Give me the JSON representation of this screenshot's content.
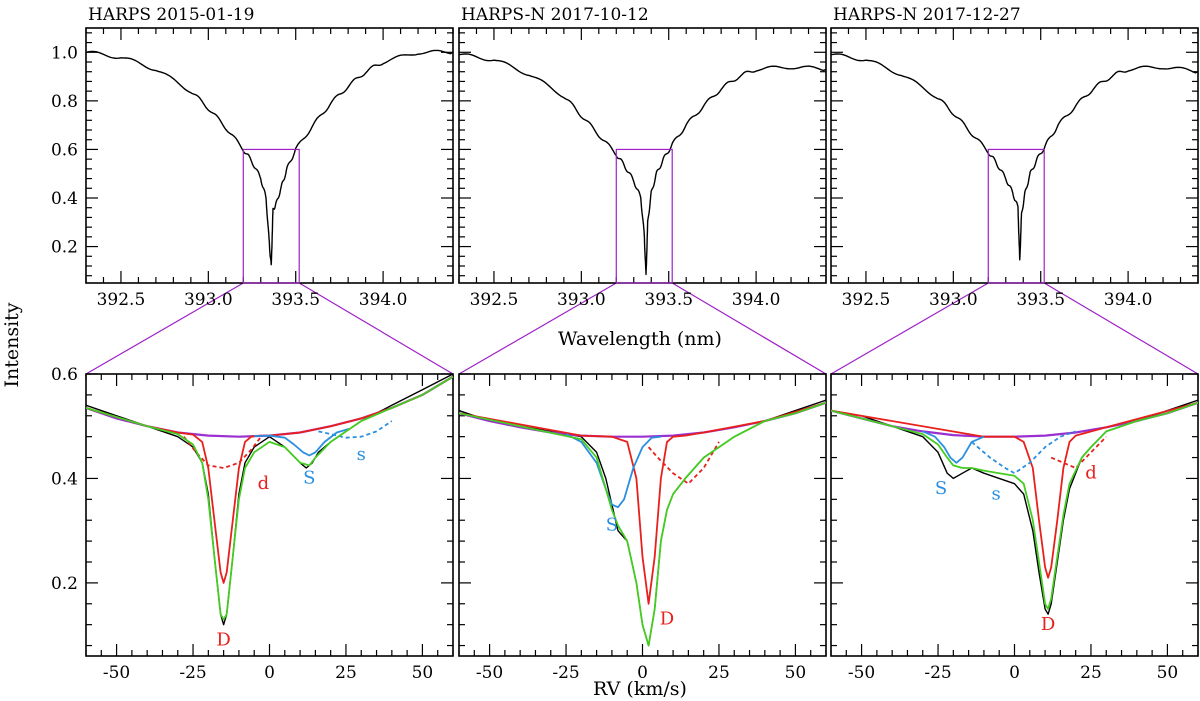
{
  "figure": {
    "ylabel": "Intensity",
    "top_xlabel": "Wavelength (nm)",
    "bottom_xlabel": "RV (km/s)"
  },
  "colors": {
    "spectrum": "#000000",
    "box": "#a020c8",
    "continuum": "#9b30d0",
    "D": "#e8201c",
    "S": "#2a8fe0",
    "total": "#44cc22"
  },
  "chart_data": [
    {
      "type": "line",
      "title": "HARPS 2015-01-19",
      "xlabel": "",
      "ylabel": "",
      "xlim": [
        392.3,
        394.4
      ],
      "ylim": [
        0.05,
        1.1
      ],
      "xticks": [
        392.5,
        393.0,
        393.5,
        394.0
      ],
      "yticks": [
        0.2,
        0.4,
        0.6,
        0.8,
        1.0
      ],
      "zoom_box": {
        "x": [
          393.2,
          393.52
        ],
        "y": [
          0.05,
          0.6
        ]
      },
      "series": [
        {
          "x": [
            392.3,
            392.5,
            392.7,
            392.9,
            393.0,
            393.1,
            393.2,
            393.25,
            393.3,
            393.33,
            393.35,
            393.36,
            393.37,
            393.39,
            393.42,
            393.45,
            393.5,
            393.6,
            393.7,
            393.8,
            393.9,
            394.0,
            394.2,
            394.4
          ],
          "y": [
            1.0,
            0.98,
            0.93,
            0.84,
            0.77,
            0.69,
            0.6,
            0.55,
            0.48,
            0.4,
            0.2,
            0.12,
            0.35,
            0.38,
            0.45,
            0.52,
            0.6,
            0.7,
            0.79,
            0.86,
            0.92,
            0.96,
            1.0,
            1.0
          ]
        }
      ]
    },
    {
      "type": "line",
      "title": "HARPS-N 2017-10-12",
      "xlabel": "",
      "ylabel": "",
      "xlim": [
        392.3,
        394.4
      ],
      "ylim": [
        0.05,
        1.1
      ],
      "xticks": [
        392.5,
        393.0,
        393.5,
        394.0
      ],
      "yticks": [
        0.2,
        0.4,
        0.6,
        0.8,
        1.0
      ],
      "zoom_box": {
        "x": [
          393.2,
          393.52
        ],
        "y": [
          0.05,
          0.6
        ]
      },
      "series": [
        {
          "x": [
            392.3,
            392.5,
            392.7,
            392.9,
            393.0,
            393.1,
            393.2,
            393.25,
            393.3,
            393.34,
            393.36,
            393.37,
            393.38,
            393.4,
            393.43,
            393.47,
            393.52,
            393.6,
            393.7,
            393.8,
            393.9,
            394.0,
            394.2,
            394.4
          ],
          "y": [
            0.99,
            0.97,
            0.91,
            0.82,
            0.74,
            0.66,
            0.58,
            0.53,
            0.47,
            0.4,
            0.25,
            0.08,
            0.3,
            0.42,
            0.5,
            0.56,
            0.62,
            0.7,
            0.78,
            0.85,
            0.9,
            0.93,
            0.94,
            0.93
          ]
        }
      ]
    },
    {
      "type": "line",
      "title": "HARPS-N 2017-12-27",
      "xlabel": "",
      "ylabel": "",
      "xlim": [
        392.3,
        394.4
      ],
      "ylim": [
        0.05,
        1.1
      ],
      "xticks": [
        392.5,
        393.0,
        393.5,
        394.0
      ],
      "yticks": [
        0.2,
        0.4,
        0.6,
        0.8,
        1.0
      ],
      "zoom_box": {
        "x": [
          393.2,
          393.52
        ],
        "y": [
          0.05,
          0.6
        ]
      },
      "series": [
        {
          "x": [
            392.3,
            392.5,
            392.7,
            392.9,
            393.0,
            393.1,
            393.2,
            393.25,
            393.3,
            393.34,
            393.37,
            393.38,
            393.39,
            393.41,
            393.44,
            393.48,
            393.53,
            393.6,
            393.7,
            393.8,
            393.9,
            394.0,
            394.2,
            394.4
          ],
          "y": [
            0.99,
            0.97,
            0.91,
            0.82,
            0.75,
            0.67,
            0.59,
            0.54,
            0.48,
            0.42,
            0.36,
            0.14,
            0.33,
            0.42,
            0.5,
            0.56,
            0.62,
            0.7,
            0.78,
            0.85,
            0.9,
            0.93,
            0.94,
            0.92
          ]
        }
      ]
    },
    {
      "type": "line",
      "xlabel": "",
      "ylabel": "",
      "xlim": [
        -60,
        60
      ],
      "ylim": [
        0.06,
        0.6
      ],
      "xticks": [
        -50,
        -25,
        0,
        25,
        50
      ],
      "yticks": [
        0.2,
        0.4,
        0.6
      ],
      "series": [
        {
          "role": "observed",
          "x": [
            -60,
            -50,
            -40,
            -30,
            -25,
            -22,
            -20,
            -18,
            -16,
            -15,
            -14,
            -12,
            -10,
            -8,
            -5,
            0,
            5,
            10,
            12,
            14,
            16,
            20,
            25,
            30,
            40,
            50,
            60
          ],
          "y": [
            0.54,
            0.52,
            0.5,
            0.48,
            0.46,
            0.43,
            0.37,
            0.25,
            0.14,
            0.12,
            0.14,
            0.25,
            0.37,
            0.43,
            0.46,
            0.48,
            0.46,
            0.43,
            0.42,
            0.43,
            0.45,
            0.47,
            0.49,
            0.51,
            0.54,
            0.57,
            0.6
          ]
        },
        {
          "role": "continuum",
          "x": [
            -60,
            -50,
            -40,
            -30,
            -20,
            -10,
            0,
            10,
            20,
            30,
            40,
            50,
            60
          ],
          "y": [
            0.535,
            0.515,
            0.5,
            0.488,
            0.482,
            0.48,
            0.482,
            0.488,
            0.5,
            0.515,
            0.535,
            0.56,
            0.595
          ]
        },
        {
          "role": "D",
          "x": [
            -60,
            -40,
            -30,
            -25,
            -22,
            -20,
            -18,
            -16,
            -15,
            -14,
            -12,
            -10,
            -8,
            -6,
            -3,
            0,
            10,
            20,
            30,
            40,
            50,
            60
          ],
          "y": [
            0.535,
            0.5,
            0.488,
            0.484,
            0.47,
            0.42,
            0.32,
            0.22,
            0.2,
            0.22,
            0.32,
            0.42,
            0.47,
            0.48,
            0.482,
            0.482,
            0.488,
            0.5,
            0.515,
            0.535,
            0.56,
            0.595
          ]
        },
        {
          "role": "d",
          "x": [
            -28,
            -24,
            -20,
            -15,
            -10,
            -6,
            -3
          ],
          "y": [
            0.48,
            0.45,
            0.425,
            0.42,
            0.43,
            0.455,
            0.478
          ]
        },
        {
          "role": "S",
          "x": [
            -5,
            0,
            5,
            8,
            11,
            13,
            15,
            18,
            22,
            26
          ],
          "y": [
            0.481,
            0.482,
            0.478,
            0.465,
            0.45,
            0.444,
            0.45,
            0.47,
            0.488,
            0.495
          ]
        },
        {
          "role": "s",
          "x": [
            16,
            20,
            25,
            30,
            35,
            40
          ],
          "y": [
            0.49,
            0.485,
            0.478,
            0.48,
            0.49,
            0.51
          ]
        },
        {
          "role": "total",
          "x": [
            -60,
            -40,
            -30,
            -25,
            -22,
            -20,
            -18,
            -16,
            -15,
            -14,
            -12,
            -10,
            -8,
            -5,
            0,
            5,
            10,
            13,
            15,
            20,
            25,
            30,
            40,
            50,
            60
          ],
          "y": [
            0.535,
            0.5,
            0.485,
            0.465,
            0.43,
            0.36,
            0.25,
            0.14,
            0.13,
            0.14,
            0.25,
            0.36,
            0.42,
            0.45,
            0.47,
            0.46,
            0.43,
            0.425,
            0.44,
            0.47,
            0.49,
            0.51,
            0.535,
            0.56,
            0.595
          ]
        }
      ],
      "labels": [
        {
          "text": "D",
          "x": -15,
          "y": 0.08,
          "role": "D"
        },
        {
          "text": "d",
          "x": -2,
          "y": 0.38,
          "role": "D"
        },
        {
          "text": "S",
          "x": 13,
          "y": 0.39,
          "role": "S"
        },
        {
          "text": "s",
          "x": 30,
          "y": 0.435,
          "role": "S"
        }
      ]
    },
    {
      "type": "line",
      "xlabel": "",
      "ylabel": "",
      "xlim": [
        -60,
        60
      ],
      "ylim": [
        0.06,
        0.6
      ],
      "xticks": [
        -50,
        -25,
        0,
        25,
        50
      ],
      "yticks": [
        0.2,
        0.4,
        0.6
      ],
      "series": [
        {
          "role": "observed",
          "x": [
            -60,
            -50,
            -40,
            -30,
            -20,
            -15,
            -12,
            -10,
            -8,
            -5,
            -2,
            0,
            2,
            4,
            6,
            8,
            10,
            14,
            20,
            30,
            40,
            50,
            60
          ],
          "y": [
            0.53,
            0.51,
            0.5,
            0.49,
            0.48,
            0.45,
            0.4,
            0.35,
            0.3,
            0.28,
            0.2,
            0.12,
            0.08,
            0.15,
            0.28,
            0.34,
            0.37,
            0.4,
            0.44,
            0.48,
            0.51,
            0.53,
            0.55
          ]
        },
        {
          "role": "continuum",
          "x": [
            -60,
            -50,
            -40,
            -30,
            -20,
            -10,
            0,
            10,
            20,
            30,
            40,
            50,
            60
          ],
          "y": [
            0.525,
            0.51,
            0.498,
            0.488,
            0.482,
            0.48,
            0.48,
            0.482,
            0.488,
            0.498,
            0.51,
            0.525,
            0.545
          ]
        },
        {
          "role": "D",
          "x": [
            -60,
            -20,
            -10,
            -5,
            -2,
            0,
            2,
            4,
            6,
            8,
            10,
            14,
            20,
            40,
            60
          ],
          "y": [
            0.525,
            0.482,
            0.48,
            0.47,
            0.4,
            0.25,
            0.16,
            0.25,
            0.4,
            0.47,
            0.48,
            0.482,
            0.488,
            0.51,
            0.545
          ]
        },
        {
          "role": "S",
          "x": [
            -25,
            -20,
            -15,
            -12,
            -10,
            -8,
            -6,
            -3,
            0,
            3,
            6
          ],
          "y": [
            0.485,
            0.47,
            0.43,
            0.38,
            0.35,
            0.345,
            0.36,
            0.42,
            0.46,
            0.478,
            0.48
          ]
        },
        {
          "role": "d",
          "x": [
            2,
            5,
            10,
            15,
            20,
            25
          ],
          "y": [
            0.46,
            0.44,
            0.41,
            0.39,
            0.42,
            0.47
          ]
        },
        {
          "role": "total",
          "x": [
            -60,
            -20,
            -15,
            -12,
            -10,
            -8,
            -5,
            -2,
            0,
            2,
            4,
            6,
            8,
            10,
            14,
            20,
            30,
            40,
            50,
            60
          ],
          "y": [
            0.525,
            0.475,
            0.44,
            0.38,
            0.34,
            0.31,
            0.28,
            0.2,
            0.12,
            0.08,
            0.15,
            0.28,
            0.34,
            0.37,
            0.4,
            0.44,
            0.48,
            0.51,
            0.525,
            0.545
          ]
        }
      ],
      "labels": [
        {
          "text": "S",
          "x": -10,
          "y": 0.3,
          "role": "S"
        },
        {
          "text": "D",
          "x": 8,
          "y": 0.12,
          "role": "D"
        }
      ]
    },
    {
      "type": "line",
      "xlabel": "",
      "ylabel": "",
      "xlim": [
        -60,
        60
      ],
      "ylim": [
        0.06,
        0.6
      ],
      "xticks": [
        -50,
        -25,
        0,
        25,
        50
      ],
      "yticks": [
        0.2,
        0.4,
        0.6
      ],
      "series": [
        {
          "role": "observed",
          "x": [
            -60,
            -50,
            -40,
            -30,
            -25,
            -22,
            -20,
            -17,
            -14,
            -10,
            -5,
            0,
            3,
            6,
            8,
            10,
            11,
            12,
            14,
            16,
            18,
            22,
            25,
            30,
            40,
            50,
            60
          ],
          "y": [
            0.53,
            0.52,
            0.5,
            0.48,
            0.45,
            0.41,
            0.4,
            0.41,
            0.42,
            0.41,
            0.4,
            0.39,
            0.37,
            0.3,
            0.22,
            0.15,
            0.14,
            0.16,
            0.24,
            0.32,
            0.38,
            0.44,
            0.46,
            0.49,
            0.51,
            0.53,
            0.55
          ]
        },
        {
          "role": "continuum",
          "x": [
            -60,
            -50,
            -40,
            -30,
            -20,
            -10,
            0,
            10,
            20,
            30,
            40,
            50,
            60
          ],
          "y": [
            0.53,
            0.515,
            0.5,
            0.49,
            0.483,
            0.48,
            0.48,
            0.482,
            0.488,
            0.498,
            0.51,
            0.525,
            0.545
          ]
        },
        {
          "role": "D",
          "x": [
            -60,
            -10,
            0,
            3,
            6,
            8,
            10,
            11,
            12,
            14,
            16,
            18,
            20,
            30,
            60
          ],
          "y": [
            0.53,
            0.48,
            0.48,
            0.47,
            0.42,
            0.32,
            0.23,
            0.21,
            0.23,
            0.32,
            0.42,
            0.47,
            0.482,
            0.498,
            0.545
          ]
        },
        {
          "role": "S",
          "x": [
            -30,
            -26,
            -23,
            -21,
            -19,
            -17,
            -14,
            -10
          ],
          "y": [
            0.49,
            0.48,
            0.46,
            0.44,
            0.43,
            0.44,
            0.47,
            0.48
          ]
        },
        {
          "role": "s",
          "x": [
            -14,
            -8,
            -3,
            0,
            5,
            10,
            15,
            20
          ],
          "y": [
            0.47,
            0.44,
            0.42,
            0.41,
            0.43,
            0.46,
            0.48,
            0.49
          ]
        },
        {
          "role": "d",
          "x": [
            12,
            16,
            20,
            25,
            30
          ],
          "y": [
            0.44,
            0.43,
            0.42,
            0.45,
            0.48
          ]
        },
        {
          "role": "total",
          "x": [
            -60,
            -30,
            -25,
            -22,
            -20,
            -17,
            -14,
            -10,
            -5,
            0,
            3,
            6,
            8,
            10,
            11,
            12,
            14,
            16,
            18,
            22,
            25,
            30,
            40,
            50,
            60
          ],
          "y": [
            0.53,
            0.485,
            0.465,
            0.44,
            0.425,
            0.42,
            0.42,
            0.415,
            0.41,
            0.405,
            0.39,
            0.32,
            0.24,
            0.16,
            0.15,
            0.17,
            0.25,
            0.33,
            0.39,
            0.44,
            0.46,
            0.49,
            0.51,
            0.525,
            0.545
          ]
        }
      ],
      "labels": [
        {
          "text": "S",
          "x": -24,
          "y": 0.37,
          "role": "S"
        },
        {
          "text": "s",
          "x": -6,
          "y": 0.36,
          "role": "S"
        },
        {
          "text": "d",
          "x": 25,
          "y": 0.4,
          "role": "D"
        },
        {
          "text": "D",
          "x": 11,
          "y": 0.11,
          "role": "D"
        }
      ]
    }
  ]
}
